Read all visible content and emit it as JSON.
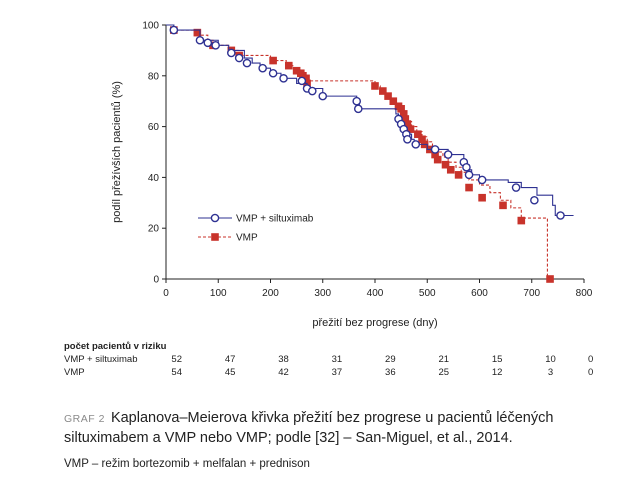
{
  "chart_data": {
    "type": "line",
    "xlabel": "přežití bez progrese (dny)",
    "ylabel": "podíl přežívších pacientů (%)",
    "xlim": [
      0,
      800
    ],
    "ylim": [
      0,
      100
    ],
    "x_ticks": [
      0,
      100,
      200,
      300,
      400,
      500,
      600,
      700,
      800
    ],
    "y_ticks": [
      0,
      20,
      40,
      60,
      80,
      100
    ],
    "grid": false,
    "legend_position": "left-center",
    "series": [
      {
        "name": "VMP + siltuximab",
        "color": "#2e3192",
        "marker": "open-circle",
        "line_style": "solid",
        "steps": [
          [
            0,
            100
          ],
          [
            15,
            98
          ],
          [
            65,
            94
          ],
          [
            100,
            92
          ],
          [
            120,
            90
          ],
          [
            150,
            87
          ],
          [
            165,
            85
          ],
          [
            180,
            83
          ],
          [
            200,
            81
          ],
          [
            220,
            79
          ],
          [
            250,
            77
          ],
          [
            270,
            75
          ],
          [
            300,
            72
          ],
          [
            360,
            72
          ],
          [
            365,
            70
          ],
          [
            370,
            67
          ],
          [
            430,
            67
          ],
          [
            440,
            65
          ],
          [
            445,
            63
          ],
          [
            450,
            61
          ],
          [
            455,
            59
          ],
          [
            460,
            57
          ],
          [
            470,
            55
          ],
          [
            475,
            53
          ],
          [
            500,
            51
          ],
          [
            540,
            49
          ],
          [
            570,
            47
          ],
          [
            575,
            45
          ],
          [
            580,
            43
          ],
          [
            585,
            41
          ],
          [
            600,
            39
          ],
          [
            640,
            39
          ],
          [
            655,
            38
          ],
          [
            680,
            36
          ],
          [
            710,
            33
          ],
          [
            740,
            29
          ],
          [
            745,
            25
          ],
          [
            780,
            25
          ]
        ],
        "censored": [
          [
            15,
            98
          ],
          [
            65,
            94
          ],
          [
            80,
            93
          ],
          [
            95,
            92
          ],
          [
            125,
            89
          ],
          [
            140,
            87
          ],
          [
            155,
            85
          ],
          [
            185,
            83
          ],
          [
            205,
            81
          ],
          [
            225,
            79
          ],
          [
            260,
            78
          ],
          [
            270,
            75
          ],
          [
            280,
            74
          ],
          [
            300,
            72
          ],
          [
            365,
            70
          ],
          [
            368,
            67
          ],
          [
            445,
            63
          ],
          [
            450,
            61
          ],
          [
            455,
            59
          ],
          [
            460,
            57
          ],
          [
            462,
            55
          ],
          [
            478,
            53
          ],
          [
            515,
            51
          ],
          [
            540,
            49
          ],
          [
            570,
            46
          ],
          [
            575,
            44
          ],
          [
            580,
            41
          ],
          [
            605,
            39
          ],
          [
            670,
            36
          ],
          [
            705,
            31
          ],
          [
            755,
            25
          ]
        ]
      },
      {
        "name": "VMP",
        "color": "#c8332b",
        "marker": "filled-square",
        "line_style": "dashed",
        "steps": [
          [
            0,
            100
          ],
          [
            15,
            98
          ],
          [
            60,
            96
          ],
          [
            80,
            94
          ],
          [
            90,
            92
          ],
          [
            120,
            90
          ],
          [
            140,
            88
          ],
          [
            200,
            86
          ],
          [
            230,
            84
          ],
          [
            245,
            82
          ],
          [
            255,
            80
          ],
          [
            265,
            78
          ],
          [
            400,
            76
          ],
          [
            410,
            74
          ],
          [
            420,
            72
          ],
          [
            430,
            70
          ],
          [
            440,
            68
          ],
          [
            450,
            66
          ],
          [
            455,
            64
          ],
          [
            460,
            62
          ],
          [
            470,
            60
          ],
          [
            480,
            58
          ],
          [
            490,
            56
          ],
          [
            500,
            54
          ],
          [
            510,
            52
          ],
          [
            520,
            50
          ],
          [
            530,
            48
          ],
          [
            540,
            46
          ],
          [
            555,
            44
          ],
          [
            565,
            42
          ],
          [
            580,
            39
          ],
          [
            600,
            37
          ],
          [
            620,
            34
          ],
          [
            640,
            31
          ],
          [
            660,
            28
          ],
          [
            680,
            24
          ],
          [
            730,
            24
          ],
          [
            730,
            0
          ],
          [
            735,
            0
          ]
        ],
        "censored": [
          [
            15,
            98
          ],
          [
            60,
            97
          ],
          [
            90,
            92
          ],
          [
            125,
            90
          ],
          [
            140,
            88
          ],
          [
            205,
            86
          ],
          [
            235,
            84
          ],
          [
            250,
            82
          ],
          [
            258,
            81
          ],
          [
            262,
            80
          ],
          [
            268,
            79
          ],
          [
            270,
            77
          ],
          [
            400,
            76
          ],
          [
            415,
            74
          ],
          [
            425,
            72
          ],
          [
            435,
            70
          ],
          [
            445,
            68
          ],
          [
            450,
            67
          ],
          [
            455,
            65
          ],
          [
            458,
            63
          ],
          [
            462,
            61
          ],
          [
            468,
            59
          ],
          [
            482,
            57
          ],
          [
            490,
            55
          ],
          [
            495,
            53
          ],
          [
            505,
            51
          ],
          [
            515,
            49
          ],
          [
            520,
            47
          ],
          [
            535,
            45
          ],
          [
            545,
            43
          ],
          [
            560,
            41
          ],
          [
            580,
            36
          ],
          [
            605,
            32
          ],
          [
            645,
            29
          ],
          [
            680,
            23
          ],
          [
            735,
            0
          ]
        ]
      }
    ]
  },
  "risk_table": {
    "title": "počet pacientů v riziku",
    "rows": [
      {
        "label": "VMP + siltuximab",
        "values": [
          "52",
          "47",
          "38",
          "31",
          "29",
          "21",
          "15",
          "10",
          "0"
        ]
      },
      {
        "label": "VMP",
        "values": [
          "54",
          "45",
          "42",
          "37",
          "36",
          "25",
          "12",
          "3",
          "0"
        ]
      }
    ]
  },
  "caption": {
    "label": "GRAF 2",
    "text": "Kaplanova–Meierova křivka přežití bez progrese u pacientů léčených siltuximabem a VMP nebo VMP; podle [32] – San-Miguel, et al., 2014.",
    "footnote": "VMP – režim bortezomib + melfalan + prednison"
  }
}
